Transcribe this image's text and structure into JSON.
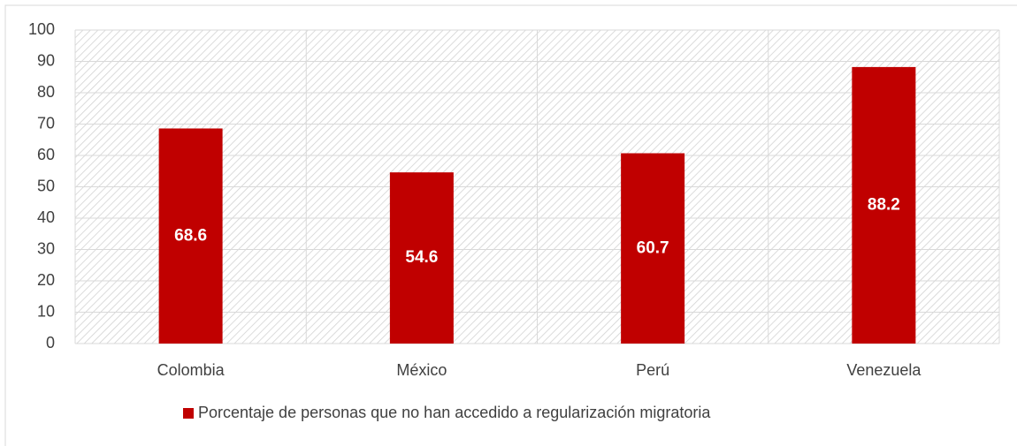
{
  "chart_data": {
    "type": "bar",
    "categories": [
      "Colombia",
      "México",
      "Perú",
      "Venezuela"
    ],
    "series": [
      {
        "name": "Porcentaje de personas que no han accedido a regularización migratoria",
        "color": "#c00000",
        "values": [
          68.6,
          54.6,
          60.7,
          88.2
        ]
      }
    ],
    "ylim": [
      0,
      100
    ],
    "yticks": [
      0,
      10,
      20,
      30,
      40,
      50,
      60,
      70,
      80,
      90,
      100
    ],
    "grid": true,
    "legend": "bottom",
    "data_labels": true
  }
}
